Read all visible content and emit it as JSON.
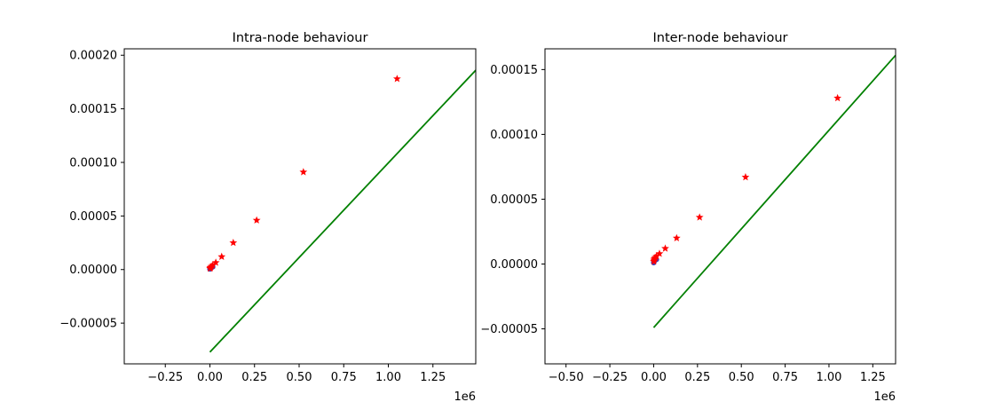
{
  "chart_data": [
    {
      "type": "scatter",
      "title": "Intra-node behaviour",
      "xlabel": "",
      "ylabel": "",
      "x_offset_label": "1e6",
      "xlim": [
        -0.48,
        1.49
      ],
      "ylim": [
        -8.8e-05,
        0.000206
      ],
      "xticks": [
        -0.25,
        0.0,
        0.25,
        0.5,
        0.75,
        1.0,
        1.25
      ],
      "xtick_labels": [
        "−0.25",
        "0.00",
        "0.25",
        "0.50",
        "0.75",
        "1.00",
        "1.25"
      ],
      "yticks": [
        -5e-05,
        0.0,
        5e-05,
        0.0001,
        0.00015,
        0.0002
      ],
      "ytick_labels": [
        "−0.00005",
        "0.00000",
        "0.00005",
        "0.00010",
        "0.00015",
        "0.00020"
      ],
      "grid": false,
      "series": [
        {
          "marker": "dot",
          "color": "#3f3fb8",
          "x": [
            0.0,
            0.0005,
            0.001,
            0.002,
            0.004,
            0.008,
            0.016
          ],
          "y": [
            5e-07,
            6e-07,
            7e-07,
            1e-06,
            1.5e-06,
            2e-06,
            2.5e-06
          ]
        },
        {
          "marker": "star",
          "color": "#ff0000",
          "x": [
            0.001,
            0.002,
            0.004,
            0.008,
            0.016,
            0.033,
            0.066,
            0.131,
            0.262,
            0.524,
            1.049
          ],
          "y": [
            1e-06,
            1.5e-06,
            2e-06,
            3e-06,
            4e-06,
            6.5e-06,
            1.2e-05,
            2.5e-05,
            4.6e-05,
            9.1e-05,
            0.000178
          ]
        },
        {
          "type": "line",
          "color": "#008000",
          "x": [
            0.0,
            1.49
          ],
          "y": [
            -7.7e-05,
            0.000186
          ]
        }
      ]
    },
    {
      "type": "scatter",
      "title": "Inter-node behaviour",
      "xlabel": "",
      "ylabel": "",
      "x_offset_label": "1e6",
      "xlim": [
        -0.62,
        1.38
      ],
      "ylim": [
        -7.7e-05,
        0.000166
      ],
      "xticks": [
        -0.5,
        -0.25,
        0.0,
        0.25,
        0.5,
        0.75,
        1.0,
        1.25
      ],
      "xtick_labels": [
        "−0.50",
        "−0.25",
        "0.00",
        "0.25",
        "0.50",
        "0.75",
        "1.00",
        "1.25"
      ],
      "yticks": [
        -5e-05,
        0.0,
        5e-05,
        0.0001,
        0.00015
      ],
      "ytick_labels": [
        "−0.00005",
        "0.00000",
        "0.00005",
        "0.00010",
        "0.00015"
      ],
      "grid": false,
      "series": [
        {
          "marker": "dot",
          "color": "#3f3fb8",
          "x": [
            0.0,
            0.0005,
            0.001,
            0.002,
            0.004,
            0.008,
            0.016
          ],
          "y": [
            1e-06,
            1.2e-06,
            1.5e-06,
            2e-06,
            2.5e-06,
            3e-06,
            3.5e-06
          ]
        },
        {
          "marker": "star",
          "color": "#ff0000",
          "x": [
            0.001,
            0.002,
            0.004,
            0.008,
            0.016,
            0.033,
            0.066,
            0.131,
            0.262,
            0.524,
            1.049
          ],
          "y": [
            2e-06,
            3e-06,
            4e-06,
            5e-06,
            6e-06,
            8e-06,
            1.2e-05,
            2e-05,
            3.6e-05,
            6.7e-05,
            0.000128
          ]
        },
        {
          "type": "line",
          "color": "#008000",
          "x": [
            0.0,
            1.38
          ],
          "y": [
            -4.9e-05,
            0.000161
          ]
        }
      ]
    }
  ]
}
